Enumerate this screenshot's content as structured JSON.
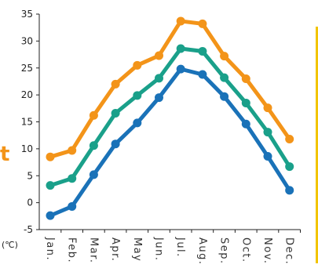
{
  "chart_data": {
    "type": "line",
    "title": "",
    "xlabel": "",
    "ylabel": "",
    "unit": "(℃)",
    "categories": [
      "Jan.",
      "Feb.",
      "Mar.",
      "Apr.",
      "May",
      "Jun.",
      "Jul.",
      "Aug.",
      "Sep.",
      "Oct.",
      "Nov.",
      "Dec."
    ],
    "ylim": [
      -5,
      35
    ],
    "yticks": [
      -5,
      0,
      5,
      10,
      15,
      20,
      25,
      30,
      35
    ],
    "grid": false,
    "legend": "none",
    "series": [
      {
        "color": "#f39419",
        "values": [
          8.5,
          9.7,
          16.2,
          22.0,
          25.5,
          27.3,
          33.7,
          33.2,
          27.2,
          23.0,
          17.6,
          11.8
        ]
      },
      {
        "color": "#1aa08a",
        "values": [
          3.2,
          4.5,
          10.6,
          16.6,
          19.9,
          23.1,
          28.6,
          28.1,
          23.2,
          18.5,
          13.1,
          6.7
        ]
      },
      {
        "color": "#1a72b8",
        "values": [
          -2.4,
          -0.7,
          5.2,
          10.9,
          14.8,
          19.5,
          24.8,
          23.8,
          19.7,
          14.6,
          8.6,
          2.3
        ]
      }
    ]
  },
  "side_glyph": {
    "text": "t",
    "color": "#f39419"
  },
  "frame_color": "#f2c400"
}
